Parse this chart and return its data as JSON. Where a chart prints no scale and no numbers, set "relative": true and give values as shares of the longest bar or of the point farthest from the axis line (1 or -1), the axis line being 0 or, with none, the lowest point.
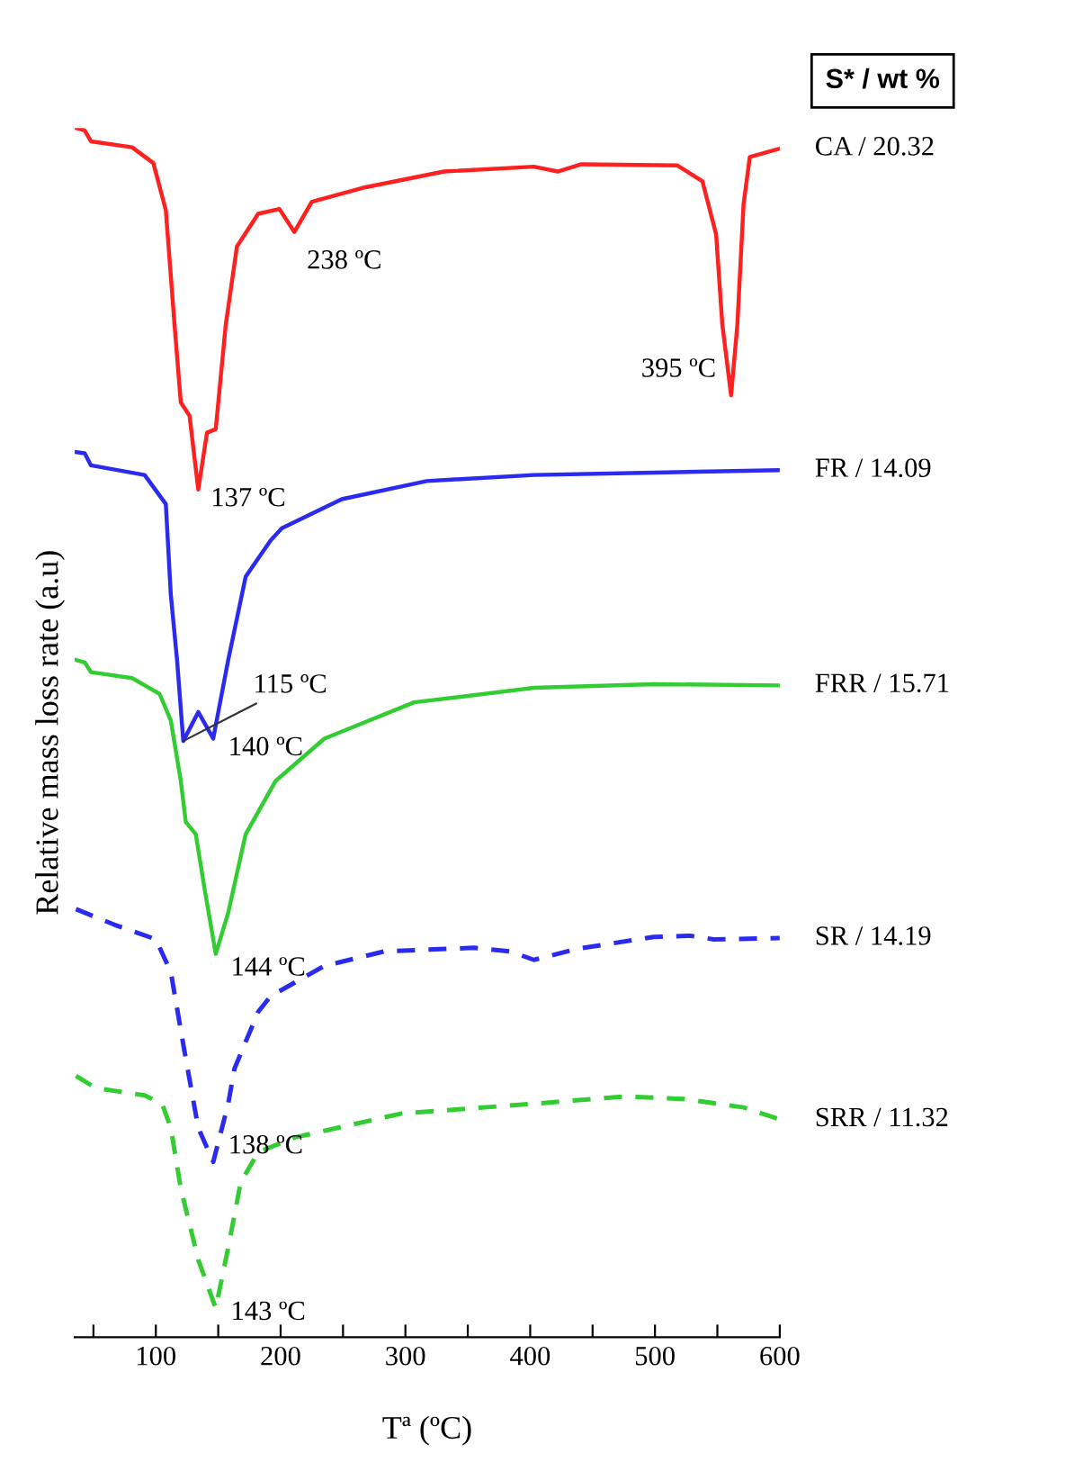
{
  "chart_data": {
    "type": "line",
    "relative": true,
    "xlabel": "Tª (ºC)",
    "ylabel": "Relative mass loss rate (a.u)",
    "legend_title": "S* / wt %",
    "grid": false,
    "tick_labels": "x",
    "xlim": [
      35,
      600
    ],
    "xticks": [
      {
        "value": 50,
        "label": null
      },
      100,
      {
        "value": 150,
        "label": null
      },
      200,
      {
        "value": 250,
        "label": null
      },
      300,
      {
        "value": 350,
        "label": null
      },
      400,
      {
        "value": 450,
        "label": null
      },
      500,
      {
        "value": 550,
        "label": null
      },
      600
    ],
    "series": [
      {
        "name": "CA / 20.32",
        "color": "#ff2020",
        "line_style": "solid",
        "x": [
          36,
          43,
          48,
          81,
          98,
          108,
          115,
          120,
          127,
          134,
          141,
          148,
          156,
          165,
          182,
          199,
          211,
          225,
          268,
          331,
          403,
          422,
          441,
          518,
          538,
          549,
          554,
          561,
          566,
          571,
          576,
          600
        ],
        "values": [
          1.0,
          0.998,
          0.989,
          0.984,
          0.971,
          0.932,
          0.837,
          0.773,
          0.762,
          0.701,
          0.748,
          0.751,
          0.837,
          0.902,
          0.929,
          0.933,
          0.914,
          0.939,
          0.951,
          0.964,
          0.968,
          0.964,
          0.97,
          0.969,
          0.956,
          0.912,
          0.837,
          0.779,
          0.837,
          0.937,
          0.976,
          0.983
        ]
      },
      {
        "name": "FR / 14.09",
        "color": "#2a2af0",
        "line_style": "solid",
        "x": [
          36,
          43,
          48,
          91,
          108,
          112,
          117,
          122,
          134,
          146,
          158,
          172,
          192,
          201,
          249,
          317,
          403,
          499,
          600
        ],
        "values": [
          0.732,
          0.731,
          0.721,
          0.713,
          0.689,
          0.614,
          0.56,
          0.493,
          0.517,
          0.495,
          0.56,
          0.629,
          0.659,
          0.669,
          0.693,
          0.708,
          0.713,
          0.715,
          0.717
        ]
      },
      {
        "name": "FRR / 15.71",
        "color": "#33cc33",
        "line_style": "solid",
        "x": [
          36,
          43,
          48,
          81,
          103,
          112,
          120,
          124,
          132,
          139,
          148,
          158,
          172,
          196,
          235,
          307,
          403,
          499,
          600
        ],
        "values": [
          0.56,
          0.558,
          0.55,
          0.545,
          0.532,
          0.51,
          0.46,
          0.426,
          0.416,
          0.371,
          0.317,
          0.351,
          0.416,
          0.46,
          0.495,
          0.525,
          0.537,
          0.54,
          0.539
        ]
      },
      {
        "name": "SR / 14.19",
        "color": "#2a2af0",
        "line_style": "dashed",
        "x": [
          36,
          67,
          100,
          112,
          122,
          134,
          146,
          158,
          163,
          182,
          192,
          235,
          283,
          355,
          384,
          403,
          437,
          499,
          528,
          547,
          600
        ],
        "values": [
          0.354,
          0.341,
          0.329,
          0.302,
          0.242,
          0.173,
          0.145,
          0.193,
          0.222,
          0.269,
          0.282,
          0.307,
          0.319,
          0.322,
          0.319,
          0.312,
          0.321,
          0.331,
          0.332,
          0.329,
          0.33
        ]
      },
      {
        "name": "SRR / 11.32",
        "color": "#33cc33",
        "line_style": "dashed",
        "x": [
          36,
          52,
          91,
          105,
          112,
          120,
          134,
          148,
          158,
          168,
          182,
          211,
          245,
          297,
          403,
          475,
          523,
          571,
          600
        ],
        "values": [
          0.216,
          0.206,
          0.2,
          0.193,
          0.173,
          0.123,
          0.064,
          0.024,
          0.074,
          0.128,
          0.153,
          0.165,
          0.173,
          0.185,
          0.193,
          0.199,
          0.197,
          0.19,
          0.18
        ]
      }
    ],
    "annotations": [
      {
        "text": "137 ºC",
        "x": 134,
        "y": 0.701
      },
      {
        "text": "238 ºC",
        "x": 211,
        "y": 0.914
      },
      {
        "text": "395 ºC",
        "x": 561,
        "y": 0.779
      },
      {
        "text": "115 ºC",
        "x": 122,
        "y": 0.493
      },
      {
        "text": "140 ºC",
        "x": 146,
        "y": 0.495
      },
      {
        "text": "144 ºC",
        "x": 148,
        "y": 0.317
      },
      {
        "text": "138 ºC",
        "x": 146,
        "y": 0.145
      },
      {
        "text": "143 ºC",
        "x": 148,
        "y": 0.024
      }
    ]
  }
}
